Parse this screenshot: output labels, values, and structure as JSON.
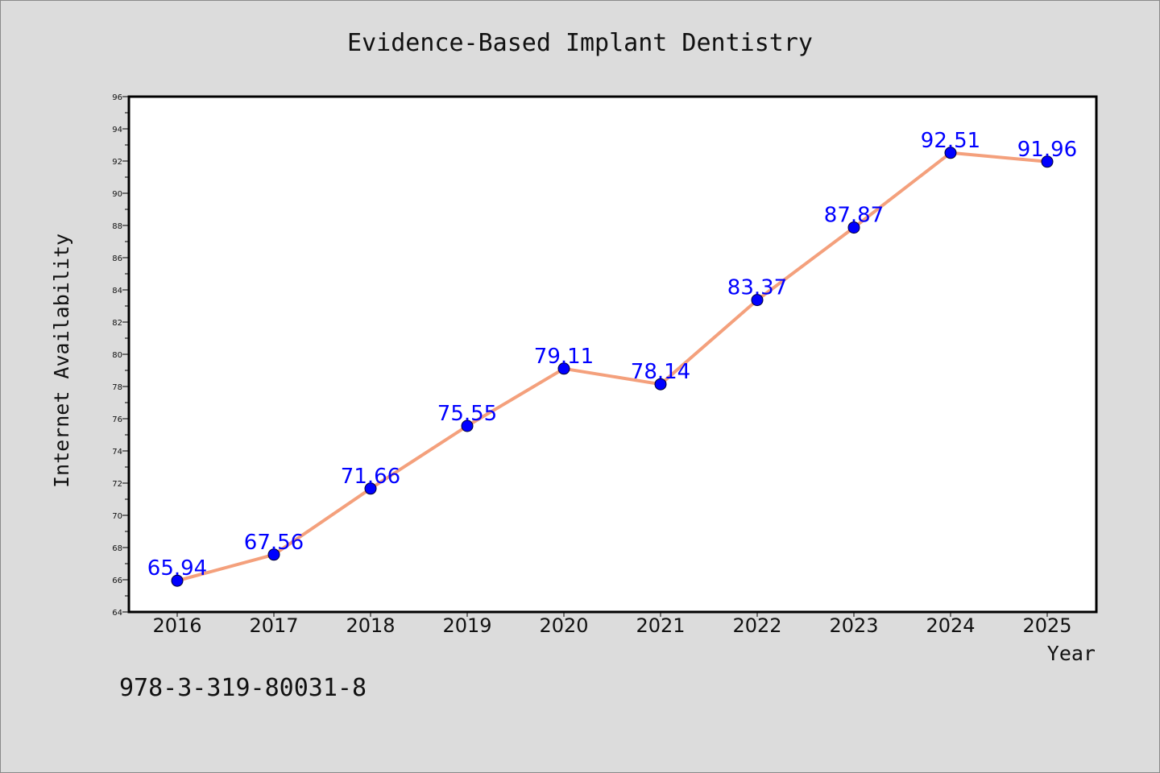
{
  "colors": {
    "line": "#f4a07c",
    "marker": "#0000ff",
    "data_label": "#0000ff",
    "background": "#dcdcdc",
    "plot_background": "#ffffff"
  },
  "footer_text": "978-3-319-80031-8",
  "chart_data": {
    "type": "line",
    "title": "Evidence-Based Implant Dentistry",
    "xlabel": "Year",
    "ylabel": "Internet Availability",
    "categories": [
      "2016",
      "2017",
      "2018",
      "2019",
      "2020",
      "2021",
      "2022",
      "2023",
      "2024",
      "2025"
    ],
    "series": [
      {
        "values": [
          65.94,
          67.56,
          71.66,
          75.55,
          79.11,
          78.14,
          83.37,
          87.87,
          92.51,
          91.96
        ],
        "labels": [
          "65.94",
          "67.56",
          "71.66",
          "75.55",
          "79.11",
          "78.14",
          "83.37",
          "87.87",
          "92.51",
          "91.96"
        ]
      }
    ],
    "ylim": [
      64,
      96
    ],
    "yticks": [
      "64",
      "66",
      "68",
      "70",
      "72",
      "74",
      "76",
      "78",
      "80",
      "82",
      "84",
      "86",
      "88",
      "90",
      "92",
      "94",
      "96"
    ],
    "grid": false,
    "legend": "none",
    "markers": true,
    "data_labels": true
  }
}
